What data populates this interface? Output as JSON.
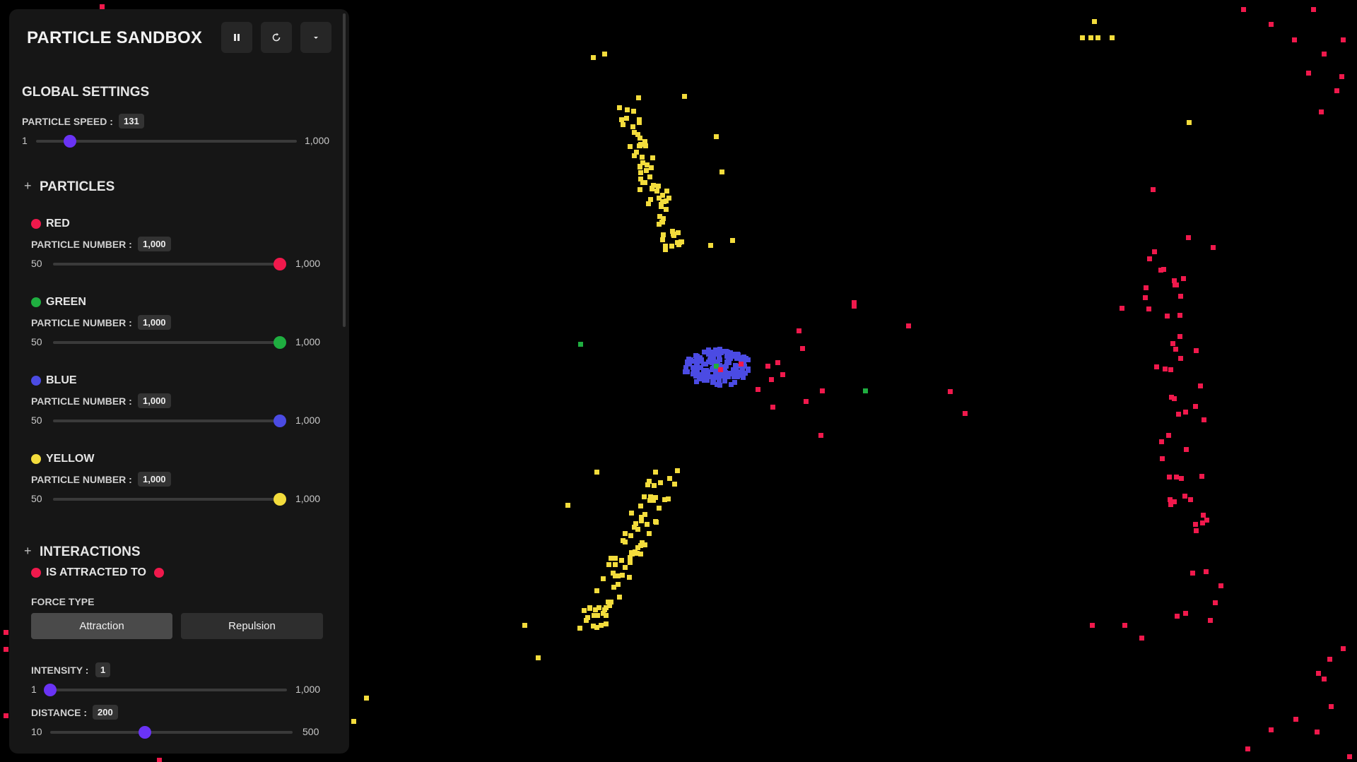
{
  "app": {
    "title": "PARTICLE SANDBOX"
  },
  "toolbar": {
    "pause_icon": "pause-icon",
    "restart_icon": "restart-icon",
    "menu_icon": "chevron-down-icon"
  },
  "global_settings": {
    "heading": "GLOBAL SETTINGS",
    "speed": {
      "label": "PARTICLE SPEED :",
      "value": "131",
      "min": "1",
      "max": "1,000",
      "fraction": 0.13
    }
  },
  "particles": {
    "heading": "PARTICLES",
    "items": [
      {
        "name": "RED",
        "color": "#f0194c",
        "label": "PARTICLE NUMBER :",
        "value": "1,000",
        "min": "50",
        "max": "1,000",
        "fraction": 1.0
      },
      {
        "name": "GREEN",
        "color": "#1fae40",
        "label": "PARTICLE NUMBER :",
        "value": "1,000",
        "min": "50",
        "max": "1,000",
        "fraction": 1.0
      },
      {
        "name": "BLUE",
        "color": "#4b4be3",
        "label": "PARTICLE NUMBER :",
        "value": "1,000",
        "min": "50",
        "max": "1,000",
        "fraction": 1.0
      },
      {
        "name": "YELLOW",
        "color": "#f3dc3c",
        "label": "PARTICLE NUMBER :",
        "value": "1,000",
        "min": "50",
        "max": "1,000",
        "fraction": 1.0
      }
    ]
  },
  "interactions": {
    "heading": "INTERACTIONS",
    "rule": {
      "text": "IS ATTRACTED TO",
      "from_color": "#f0194c",
      "to_color": "#f0194c"
    },
    "force_type_label": "FORCE TYPE",
    "attraction_label": "Attraction",
    "repulsion_label": "Repulsion",
    "selected": "Attraction",
    "intensity": {
      "label": "INTENSITY :",
      "value": "1",
      "min": "1",
      "max": "1,000",
      "fraction": 0.0
    },
    "distance": {
      "label": "DISTANCE :",
      "value": "200",
      "min": "10",
      "max": "500",
      "fraction": 0.39
    }
  },
  "colors": {
    "accent": "#6a33f5",
    "panel_bg": "#161616",
    "canvas_bg": "#000000"
  }
}
